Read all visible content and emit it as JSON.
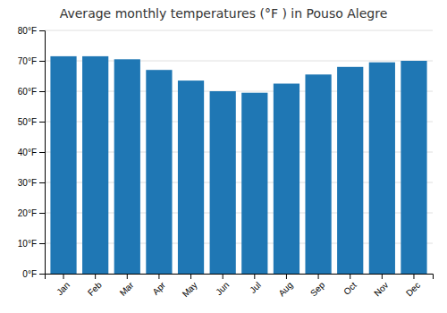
{
  "chart_data": {
    "type": "bar",
    "title": "Average monthly temperatures (°F ) in Pouso Alegre",
    "categories": [
      "Jan",
      "Feb",
      "Mar",
      "Apr",
      "May",
      "Jun",
      "Jul",
      "Aug",
      "Sep",
      "Oct",
      "Nov",
      "Dec"
    ],
    "values": [
      71.5,
      71.5,
      70.5,
      67.0,
      63.5,
      60.0,
      59.5,
      62.5,
      65.5,
      68.0,
      69.5,
      70.0
    ],
    "ylim": [
      0,
      80
    ],
    "yticks": [
      {
        "value": 0,
        "label": "0°F"
      },
      {
        "value": 10,
        "label": "10°F"
      },
      {
        "value": 20,
        "label": "20°F"
      },
      {
        "value": 30,
        "label": "30°F"
      },
      {
        "value": 40,
        "label": "40°F"
      },
      {
        "value": 50,
        "label": "50°F"
      },
      {
        "value": 60,
        "label": "60°F"
      },
      {
        "value": 70,
        "label": "70°F"
      },
      {
        "value": 80,
        "label": "80°F"
      }
    ],
    "grid": true
  }
}
